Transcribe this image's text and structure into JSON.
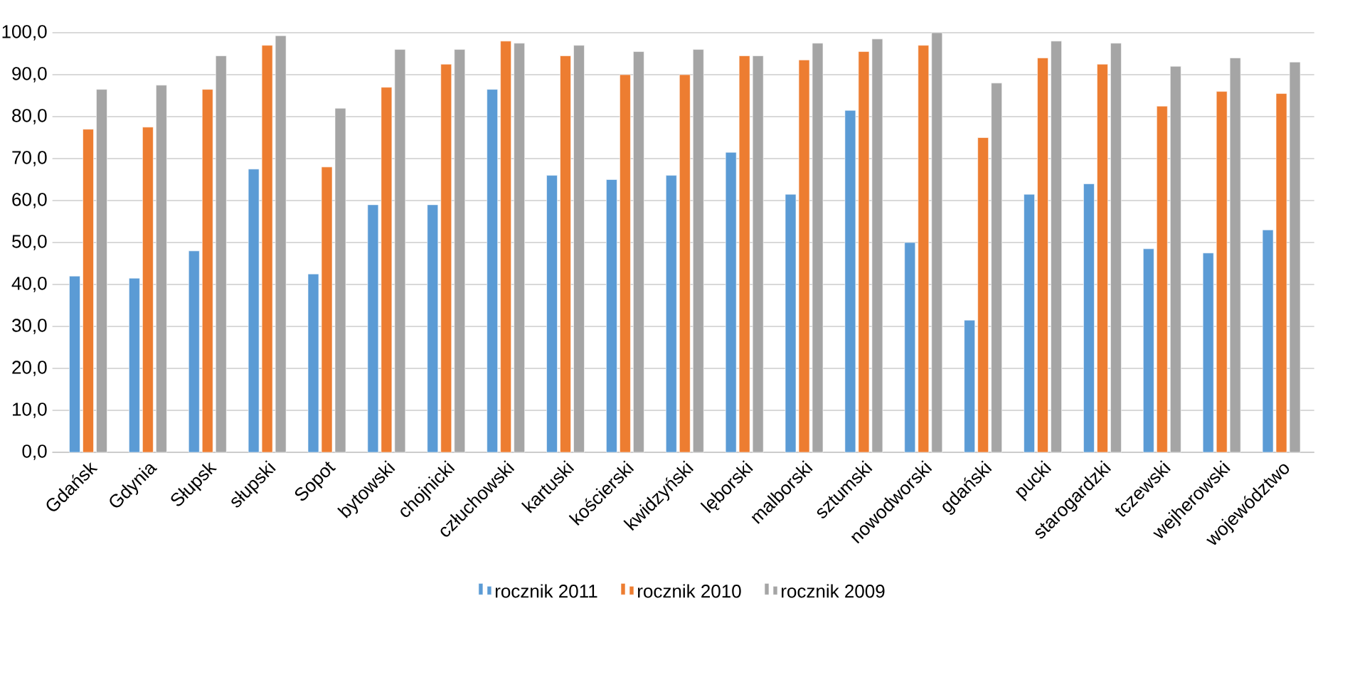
{
  "chart_data": {
    "type": "bar",
    "categories": [
      "Gdańsk",
      "Gdynia",
      "Słupsk",
      "słupski",
      "Sopot",
      "bytowski",
      "chojnicki",
      "człuchowski",
      "kartuski",
      "kościerski",
      "kwidzyński",
      "lęborski",
      "malborski",
      "sztumski",
      "nowodworski",
      "gdański",
      "pucki",
      "starogardzki",
      "tczewski",
      "wejherowski",
      "województwo"
    ],
    "series": [
      {
        "name": "rocznik 2011",
        "color": "#5b9bd5",
        "values": [
          42,
          41.5,
          48,
          67.5,
          42.5,
          59,
          59,
          86.5,
          66,
          65,
          66,
          71.5,
          61.5,
          81.5,
          50,
          31.5,
          61.5,
          64,
          48.5,
          47.5,
          53
        ]
      },
      {
        "name": "rocznik 2010",
        "color": "#ed7d31",
        "values": [
          77,
          77.5,
          86.5,
          97,
          68,
          87,
          92.5,
          98,
          94.5,
          90,
          90,
          94.5,
          93.5,
          95.5,
          97,
          75,
          94,
          92.5,
          82.5,
          86,
          85.5
        ]
      },
      {
        "name": "rocznik 2009",
        "color": "#a5a5a5",
        "values": [
          86.5,
          87.5,
          94.5,
          99.3,
          82,
          96,
          96,
          97.5,
          97,
          95.5,
          96,
          94.5,
          97.5,
          98.5,
          100,
          88,
          98,
          97.5,
          92,
          94,
          93
        ]
      }
    ],
    "ylim": [
      0,
      100
    ],
    "yticks": [
      {
        "value": 0,
        "label": "0,0"
      },
      {
        "value": 10,
        "label": "10,0"
      },
      {
        "value": 20,
        "label": "20,0"
      },
      {
        "value": 30,
        "label": "30,0"
      },
      {
        "value": 40,
        "label": "40,0"
      },
      {
        "value": 50,
        "label": "50,0"
      },
      {
        "value": 60,
        "label": "60,0"
      },
      {
        "value": 70,
        "label": "70,0"
      },
      {
        "value": 80,
        "label": "80,0"
      },
      {
        "value": 90,
        "label": "90,0"
      },
      {
        "value": 100,
        "label": "100,0"
      }
    ],
    "grid": "y",
    "legend": "bottom"
  }
}
